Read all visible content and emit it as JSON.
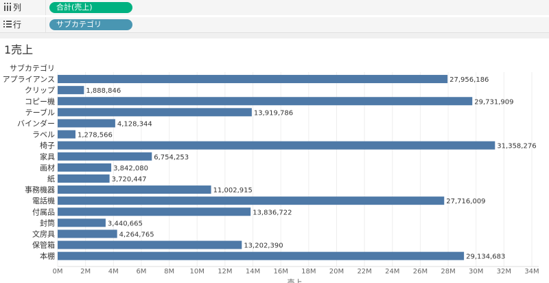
{
  "shelves": {
    "columns": {
      "label": "列",
      "pill": "合計(売上)",
      "pill_color": "#00b180"
    },
    "rows": {
      "label": "行",
      "pill": "サブカテゴリ",
      "pill_color": "#4996b2"
    }
  },
  "sheet": {
    "title": "1売上"
  },
  "colors": {
    "bar": "#4e79a7",
    "axis_text": "#666666",
    "grid": "#eeeeee"
  },
  "chart_data": {
    "type": "bar",
    "orientation": "horizontal",
    "row_header": "サブカテゴリ",
    "xlabel": "売上",
    "categories": [
      "アプライアンス",
      "クリップ",
      "コピー機",
      "テーブル",
      "バインダー",
      "ラベル",
      "椅子",
      "家具",
      "画材",
      "紙",
      "事務機器",
      "電話機",
      "付属品",
      "封筒",
      "文房具",
      "保管箱",
      "本棚"
    ],
    "values": [
      27956186,
      1888846,
      29731909,
      13919786,
      4128344,
      1278566,
      31358276,
      6754253,
      3842080,
      3720447,
      11002915,
      27716009,
      13836722,
      3440665,
      4264765,
      13202390,
      29134683
    ],
    "data_labels": [
      "27,956,186",
      "1,888,846",
      "29,731,909",
      "13,919,786",
      "4,128,344",
      "1,278,566",
      "31,358,276",
      "6,754,253",
      "3,842,080",
      "3,720,447",
      "11,002,915",
      "27,716,009",
      "13,836,722",
      "3,440,665",
      "4,264,765",
      "13,202,390",
      "29,134,683"
    ],
    "xlim": [
      0,
      34000000
    ],
    "tick_values": [
      0,
      2000000,
      4000000,
      6000000,
      8000000,
      10000000,
      12000000,
      14000000,
      16000000,
      18000000,
      20000000,
      22000000,
      24000000,
      26000000,
      28000000,
      30000000,
      32000000,
      34000000
    ],
    "tick_labels": [
      "0M",
      "2M",
      "4M",
      "6M",
      "8M",
      "10M",
      "12M",
      "14M",
      "16M",
      "18M",
      "20M",
      "22M",
      "24M",
      "26M",
      "28M",
      "30M",
      "32M",
      "34M"
    ]
  }
}
